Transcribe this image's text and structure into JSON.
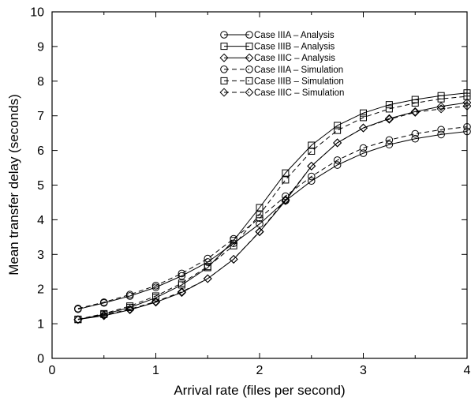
{
  "chart_data": {
    "type": "line",
    "title": "",
    "xlabel": "Arrival rate (files per second)",
    "ylabel": "Mean transfer delay (seconds)",
    "xlim": [
      0,
      4
    ],
    "ylim": [
      0,
      10
    ],
    "xticks": [
      "0",
      "1",
      "2",
      "3",
      "4"
    ],
    "yticks": [
      "0",
      "1",
      "2",
      "3",
      "4",
      "5",
      "6",
      "7",
      "8",
      "9",
      "10"
    ],
    "grid": false,
    "legend_position": "top-center",
    "x": [
      0.25,
      0.5,
      0.75,
      1.0,
      1.25,
      1.5,
      1.75,
      2.0,
      2.25,
      2.5,
      2.75,
      3.0,
      3.25,
      3.5,
      3.75,
      4.0
    ],
    "series": [
      {
        "name": "Case IIIA – Analysis",
        "marker": "circle",
        "dash": "solid",
        "values": [
          1.42,
          1.6,
          1.8,
          2.05,
          2.38,
          2.78,
          3.32,
          3.88,
          4.55,
          5.12,
          5.58,
          5.92,
          6.17,
          6.34,
          6.46,
          6.55
        ]
      },
      {
        "name": "Case IIIB – Analysis",
        "marker": "square",
        "dash": "solid",
        "values": [
          1.12,
          1.27,
          1.47,
          1.75,
          2.12,
          2.62,
          3.4,
          4.35,
          5.35,
          6.15,
          6.72,
          7.08,
          7.32,
          7.47,
          7.58,
          7.66
        ]
      },
      {
        "name": "Case IIIC – Analysis",
        "marker": "diamond",
        "dash": "solid",
        "values": [
          1.12,
          1.23,
          1.4,
          1.62,
          1.9,
          2.3,
          2.86,
          3.65,
          4.55,
          5.55,
          6.22,
          6.65,
          6.92,
          7.12,
          7.27,
          7.38
        ]
      },
      {
        "name": "Case IIIA – Simulation",
        "marker": "circle",
        "dash": "dashed",
        "values": [
          1.44,
          1.62,
          1.84,
          2.1,
          2.45,
          2.88,
          3.45,
          4.05,
          4.68,
          5.25,
          5.72,
          6.07,
          6.3,
          6.48,
          6.6,
          6.68
        ]
      },
      {
        "name": "Case IIIB – Simulation",
        "marker": "square",
        "dash": "dashed",
        "values": [
          1.13,
          1.29,
          1.51,
          1.8,
          2.17,
          2.65,
          3.25,
          4.15,
          5.15,
          5.98,
          6.58,
          6.95,
          7.2,
          7.37,
          7.49,
          7.56
        ]
      },
      {
        "name": "Case IIIC – Simulation",
        "marker": "diamond",
        "dash": "dashed",
        "values": [
          1.12,
          1.25,
          1.42,
          1.64,
          1.92,
          2.3,
          2.86,
          3.66,
          4.58,
          5.55,
          6.22,
          6.65,
          6.9,
          7.1,
          7.2,
          7.28
        ]
      }
    ]
  }
}
